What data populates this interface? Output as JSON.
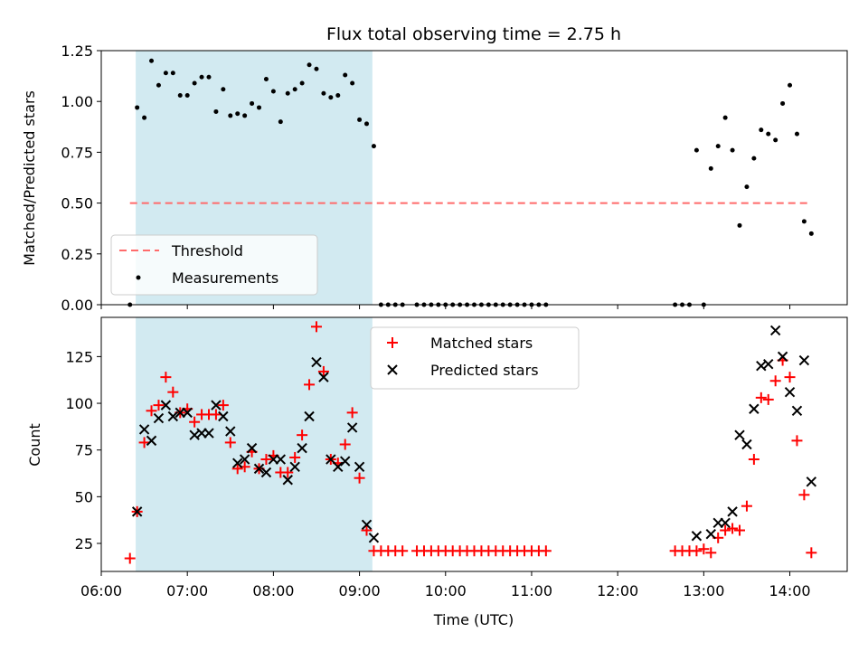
{
  "chart_data": [
    {
      "type": "scatter",
      "title": "Flux total observing time = 2.75 h",
      "xlabel": "",
      "ylabel": "Matched/Predicted stars",
      "xlim": [
        "06:00",
        "14:40"
      ],
      "ylim": [
        0,
        1.25
      ],
      "yticks": [
        "0.00",
        "0.25",
        "0.50",
        "0.75",
        "1.00",
        "1.25"
      ],
      "shaded_interval": [
        "06:24",
        "09:09"
      ],
      "threshold": {
        "name": "Threshold",
        "y": 0.5,
        "x_range": [
          "06:20",
          "14:15"
        ]
      },
      "series": [
        {
          "name": "Measurements",
          "points": [
            [
              "06:20",
              0.0
            ],
            [
              "06:25",
              0.97
            ],
            [
              "06:30",
              0.92
            ],
            [
              "06:35",
              1.2
            ],
            [
              "06:40",
              1.08
            ],
            [
              "06:45",
              1.14
            ],
            [
              "06:50",
              1.14
            ],
            [
              "06:55",
              1.03
            ],
            [
              "07:00",
              1.03
            ],
            [
              "07:05",
              1.09
            ],
            [
              "07:10",
              1.12
            ],
            [
              "07:15",
              1.12
            ],
            [
              "07:20",
              0.95
            ],
            [
              "07:25",
              1.06
            ],
            [
              "07:30",
              0.93
            ],
            [
              "07:35",
              0.94
            ],
            [
              "07:40",
              0.93
            ],
            [
              "07:45",
              0.99
            ],
            [
              "07:50",
              0.97
            ],
            [
              "07:55",
              1.11
            ],
            [
              "08:00",
              1.05
            ],
            [
              "08:05",
              0.9
            ],
            [
              "08:10",
              1.04
            ],
            [
              "08:15",
              1.06
            ],
            [
              "08:20",
              1.09
            ],
            [
              "08:25",
              1.18
            ],
            [
              "08:30",
              1.16
            ],
            [
              "08:35",
              1.04
            ],
            [
              "08:40",
              1.02
            ],
            [
              "08:45",
              1.03
            ],
            [
              "08:50",
              1.13
            ],
            [
              "08:55",
              1.09
            ],
            [
              "09:00",
              0.91
            ],
            [
              "09:05",
              0.89
            ],
            [
              "09:10",
              0.78
            ],
            [
              "09:15",
              0.0
            ],
            [
              "09:20",
              0.0
            ],
            [
              "09:25",
              0.0
            ],
            [
              "09:30",
              0.0
            ],
            [
              "09:40",
              0.0
            ],
            [
              "09:45",
              0.0
            ],
            [
              "09:50",
              0.0
            ],
            [
              "09:55",
              0.0
            ],
            [
              "10:00",
              0.0
            ],
            [
              "10:05",
              0.0
            ],
            [
              "10:10",
              0.0
            ],
            [
              "10:15",
              0.0
            ],
            [
              "10:20",
              0.0
            ],
            [
              "10:25",
              0.0
            ],
            [
              "10:30",
              0.0
            ],
            [
              "10:35",
              0.0
            ],
            [
              "10:40",
              0.0
            ],
            [
              "10:45",
              0.0
            ],
            [
              "10:50",
              0.0
            ],
            [
              "10:55",
              0.0
            ],
            [
              "11:00",
              0.0
            ],
            [
              "11:05",
              0.0
            ],
            [
              "11:10",
              0.0
            ],
            [
              "12:40",
              0.0
            ],
            [
              "12:45",
              0.0
            ],
            [
              "12:50",
              0.0
            ],
            [
              "13:00",
              0.0
            ],
            [
              "12:55",
              0.76
            ],
            [
              "13:05",
              0.67
            ],
            [
              "13:10",
              0.78
            ],
            [
              "13:15",
              0.92
            ],
            [
              "13:20",
              0.76
            ],
            [
              "13:25",
              0.39
            ],
            [
              "13:30",
              0.58
            ],
            [
              "13:35",
              0.72
            ],
            [
              "13:40",
              0.86
            ],
            [
              "13:45",
              0.84
            ],
            [
              "13:50",
              0.81
            ],
            [
              "13:55",
              0.99
            ],
            [
              "14:00",
              1.08
            ],
            [
              "14:05",
              0.84
            ],
            [
              "14:10",
              0.41
            ],
            [
              "14:15",
              0.35
            ]
          ]
        }
      ],
      "legend": [
        "Threshold",
        "Measurements"
      ],
      "legend_position": "lower left",
      "colors": {
        "measurements": "#000000",
        "threshold": "#ff6b6b",
        "shade": "#add8e6"
      }
    },
    {
      "type": "scatter",
      "title": "",
      "xlabel": "Time (UTC)",
      "ylabel": "Count",
      "xlim": [
        "06:00",
        "14:40"
      ],
      "ylim": [
        10,
        146
      ],
      "yticks": [
        "25",
        "50",
        "75",
        "100",
        "125"
      ],
      "xticks": [
        "06:00",
        "07:00",
        "08:00",
        "09:00",
        "10:00",
        "11:00",
        "12:00",
        "13:00",
        "14:00"
      ],
      "shaded_interval": [
        "06:24",
        "09:09"
      ],
      "series": [
        {
          "name": "Matched stars",
          "points": [
            [
              "06:20",
              17
            ],
            [
              "06:25",
              42
            ],
            [
              "06:30",
              79
            ],
            [
              "06:35",
              96
            ],
            [
              "06:40",
              99
            ],
            [
              "06:45",
              114
            ],
            [
              "06:50",
              106
            ],
            [
              "06:55",
              95
            ],
            [
              "07:00",
              97
            ],
            [
              "07:05",
              90
            ],
            [
              "07:10",
              94
            ],
            [
              "07:15",
              94
            ],
            [
              "07:20",
              94
            ],
            [
              "07:25",
              99
            ],
            [
              "07:30",
              79
            ],
            [
              "07:35",
              65
            ],
            [
              "07:40",
              66
            ],
            [
              "07:45",
              74
            ],
            [
              "07:50",
              65
            ],
            [
              "07:55",
              70
            ],
            [
              "08:00",
              72
            ],
            [
              "08:05",
              63
            ],
            [
              "08:10",
              63
            ],
            [
              "08:15",
              71
            ],
            [
              "08:20",
              83
            ],
            [
              "08:25",
              110
            ],
            [
              "08:30",
              141
            ],
            [
              "08:35",
              117
            ],
            [
              "08:40",
              70
            ],
            [
              "08:45",
              68
            ],
            [
              "08:50",
              78
            ],
            [
              "08:55",
              95
            ],
            [
              "09:00",
              60
            ],
            [
              "09:05",
              32
            ],
            [
              "09:10",
              21
            ],
            [
              "09:15",
              21
            ],
            [
              "09:20",
              21
            ],
            [
              "09:25",
              21
            ],
            [
              "09:30",
              21
            ],
            [
              "09:40",
              21
            ],
            [
              "09:45",
              21
            ],
            [
              "09:50",
              21
            ],
            [
              "09:55",
              21
            ],
            [
              "10:00",
              21
            ],
            [
              "10:05",
              21
            ],
            [
              "10:10",
              21
            ],
            [
              "10:15",
              21
            ],
            [
              "10:20",
              21
            ],
            [
              "10:25",
              21
            ],
            [
              "10:30",
              21
            ],
            [
              "10:35",
              21
            ],
            [
              "10:40",
              21
            ],
            [
              "10:45",
              21
            ],
            [
              "10:50",
              21
            ],
            [
              "10:55",
              21
            ],
            [
              "11:00",
              21
            ],
            [
              "11:05",
              21
            ],
            [
              "11:10",
              21
            ],
            [
              "12:40",
              21
            ],
            [
              "12:45",
              21
            ],
            [
              "12:50",
              21
            ],
            [
              "12:55",
              21
            ],
            [
              "13:00",
              22
            ],
            [
              "13:05",
              20
            ],
            [
              "13:10",
              28
            ],
            [
              "13:15",
              32
            ],
            [
              "13:20",
              33
            ],
            [
              "13:25",
              32
            ],
            [
              "13:30",
              45
            ],
            [
              "13:35",
              70
            ],
            [
              "13:40",
              103
            ],
            [
              "13:45",
              102
            ],
            [
              "13:50",
              112
            ],
            [
              "13:55",
              123
            ],
            [
              "14:00",
              114
            ],
            [
              "14:05",
              80
            ],
            [
              "14:10",
              51
            ],
            [
              "14:15",
              20
            ]
          ]
        },
        {
          "name": "Predicted stars",
          "points": [
            [
              "06:25",
              42
            ],
            [
              "06:30",
              86
            ],
            [
              "06:35",
              80
            ],
            [
              "06:40",
              92
            ],
            [
              "06:45",
              99
            ],
            [
              "06:50",
              93
            ],
            [
              "06:55",
              95
            ],
            [
              "07:00",
              95
            ],
            [
              "07:05",
              83
            ],
            [
              "07:10",
              84
            ],
            [
              "07:15",
              84
            ],
            [
              "07:20",
              99
            ],
            [
              "07:25",
              93
            ],
            [
              "07:30",
              85
            ],
            [
              "07:35",
              68
            ],
            [
              "07:40",
              70
            ],
            [
              "07:45",
              76
            ],
            [
              "07:50",
              65
            ],
            [
              "07:55",
              63
            ],
            [
              "08:00",
              70
            ],
            [
              "08:05",
              70
            ],
            [
              "08:10",
              59
            ],
            [
              "08:15",
              66
            ],
            [
              "08:20",
              76
            ],
            [
              "08:25",
              93
            ],
            [
              "08:30",
              122
            ],
            [
              "08:35",
              114
            ],
            [
              "08:40",
              70
            ],
            [
              "08:45",
              66
            ],
            [
              "08:50",
              69
            ],
            [
              "08:55",
              87
            ],
            [
              "09:00",
              66
            ],
            [
              "09:05",
              35
            ],
            [
              "09:10",
              28
            ],
            [
              "12:55",
              29
            ],
            [
              "13:05",
              30
            ],
            [
              "13:10",
              36
            ],
            [
              "13:15",
              36
            ],
            [
              "13:20",
              42
            ],
            [
              "13:25",
              83
            ],
            [
              "13:30",
              78
            ],
            [
              "13:35",
              97
            ],
            [
              "13:40",
              120
            ],
            [
              "13:45",
              121
            ],
            [
              "13:50",
              139
            ],
            [
              "13:55",
              125
            ],
            [
              "14:00",
              106
            ],
            [
              "14:05",
              96
            ],
            [
              "14:10",
              123
            ],
            [
              "14:15",
              58
            ]
          ]
        }
      ],
      "legend": [
        "Matched stars",
        "Predicted stars"
      ],
      "legend_position": "upper center",
      "colors": {
        "matched": "#ff0000",
        "predicted": "#000000",
        "shade": "#add8e6"
      }
    }
  ]
}
